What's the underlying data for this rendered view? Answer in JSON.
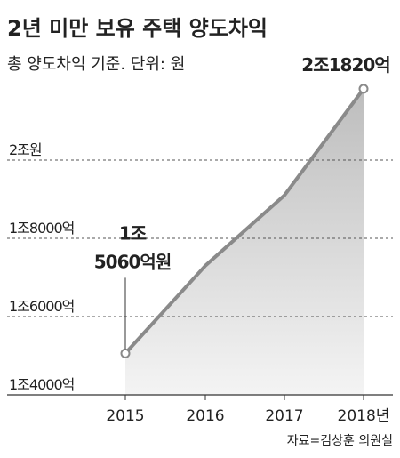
{
  "chart_data": {
    "type": "line",
    "title": "2년 미만 보유 주택 양도차익",
    "subtitle": "총 양도차익 기준. 단위: 원",
    "source": "자료=김상훈 의원실",
    "categories": [
      "2015",
      "2016",
      "2017",
      "2018년"
    ],
    "values": [
      15060,
      17300,
      19100,
      21820
    ],
    "value_labels": [
      "1조 5060억원",
      null,
      null,
      "2조1820억"
    ],
    "color": "#8a8a8a",
    "ylim": [
      14000,
      22500
    ],
    "yticks": [
      {
        "value": 14000,
        "label": "1조4000억"
      },
      {
        "value": 16000,
        "label": "1조6000억"
      },
      {
        "value": 18000,
        "label": "1조8000억"
      },
      {
        "value": 20000,
        "label": "2조원"
      }
    ],
    "grid": true
  }
}
